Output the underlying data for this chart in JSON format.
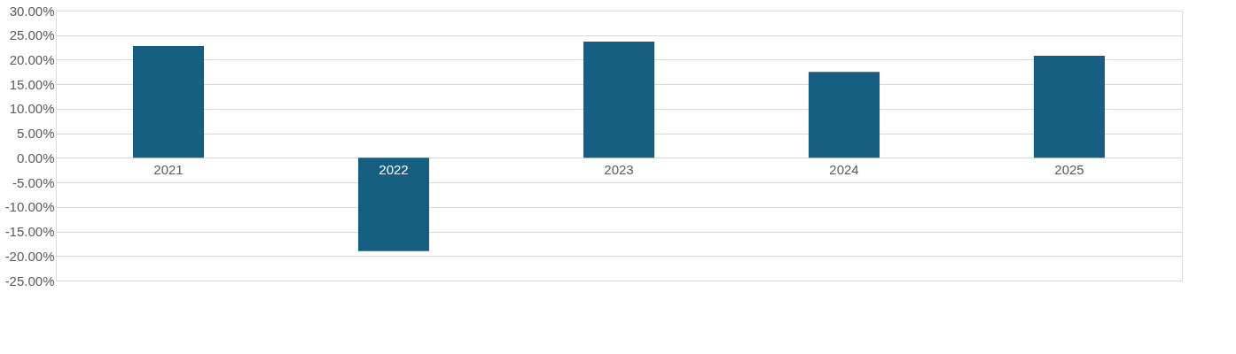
{
  "chart_data": {
    "type": "bar",
    "categories": [
      "2021",
      "2022",
      "2023",
      "2024",
      "2025"
    ],
    "series": [
      {
        "color": "#175f81",
        "values": [
          22.8,
          -19.0,
          23.7,
          17.5,
          20.8
        ]
      }
    ],
    "ylim": [
      -25,
      30
    ],
    "yticks": [
      {
        "value": 30,
        "label": "30.00%"
      },
      {
        "value": 25,
        "label": "25.00%"
      },
      {
        "value": 20,
        "label": "20.00%"
      },
      {
        "value": 15,
        "label": "15.00%"
      },
      {
        "value": 10,
        "label": "10.00%"
      },
      {
        "value": 5,
        "label": "5.00%"
      },
      {
        "value": 0,
        "label": "0.00%"
      },
      {
        "value": -5,
        "label": "-5.00%"
      },
      {
        "value": -10,
        "label": "-10.00%"
      },
      {
        "value": -15,
        "label": "-15.00%"
      },
      {
        "value": -20,
        "label": "-20.00%"
      },
      {
        "value": -25,
        "label": "-25.00%"
      }
    ],
    "grid": "y",
    "legend": false
  }
}
